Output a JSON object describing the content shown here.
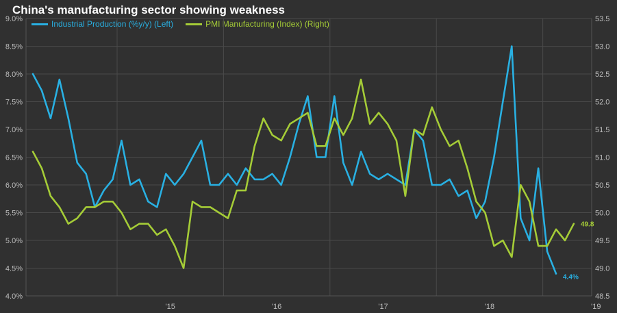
{
  "title": "China's manufacturing sector showing weakness",
  "colors": {
    "background": "#303030",
    "grid": "#4a4a4a",
    "axis_text": "#bdbdbd",
    "industrial_production": "#29b0e2",
    "pmi": "#a5cc37"
  },
  "chart_data": {
    "type": "line",
    "title": "China's manufacturing sector showing weakness",
    "grid": true,
    "legend_position": "top-left",
    "x_ticks": [
      "'15",
      "'16",
      "'17",
      "'18",
      "'19"
    ],
    "x_range": [
      "2014-03",
      "2019-05"
    ],
    "y_left": {
      "range": [
        4.0,
        9.0
      ],
      "ticks": [
        "4.0%",
        "4.5%",
        "5.0%",
        "5.5%",
        "6.0%",
        "6.5%",
        "7.0%",
        "7.5%",
        "8.0%",
        "8.5%",
        "9.0%"
      ]
    },
    "y_right": {
      "range": [
        48.5,
        53.5
      ],
      "ticks": [
        "48.5",
        "49.0",
        "49.5",
        "50.0",
        "50.5",
        "51.0",
        "51.5",
        "52.0",
        "52.5",
        "53.0",
        "53.5"
      ]
    },
    "series": [
      {
        "name": "Industrial Production (%y/y) (Left)",
        "axis": "left",
        "color": "#29b0e2",
        "end_label": "4.4%",
        "points": [
          [
            "2014-03",
            8.0
          ],
          [
            "2014-04",
            7.7
          ],
          [
            "2014-05",
            7.2
          ],
          [
            "2014-06",
            7.9
          ],
          [
            "2014-07",
            7.2
          ],
          [
            "2014-08",
            6.4
          ],
          [
            "2014-09",
            6.2
          ],
          [
            "2014-10",
            5.6
          ],
          [
            "2014-11",
            5.9
          ],
          [
            "2014-12",
            6.1
          ],
          [
            "2015-01",
            6.8
          ],
          [
            "2015-02",
            6.0
          ],
          [
            "2015-03",
            6.1
          ],
          [
            "2015-04",
            5.7
          ],
          [
            "2015-05",
            5.6
          ],
          [
            "2015-06",
            6.2
          ],
          [
            "2015-07",
            6.0
          ],
          [
            "2015-08",
            6.2
          ],
          [
            "2015-09",
            6.5
          ],
          [
            "2015-10",
            6.8
          ],
          [
            "2015-11",
            6.0
          ],
          [
            "2015-12",
            6.0
          ],
          [
            "2016-01",
            6.2
          ],
          [
            "2016-02",
            6.0
          ],
          [
            "2016-03",
            6.3
          ],
          [
            "2016-04",
            6.1
          ],
          [
            "2016-05",
            6.1
          ],
          [
            "2016-06",
            6.2
          ],
          [
            "2016-07",
            6.0
          ],
          [
            "2016-08",
            6.5
          ],
          [
            "2016-09",
            7.1
          ],
          [
            "2016-10",
            7.6
          ],
          [
            "2016-11",
            6.5
          ],
          [
            "2016-12",
            6.5
          ],
          [
            "2017-01",
            7.6
          ],
          [
            "2017-02",
            6.4
          ],
          [
            "2017-03",
            6.0
          ],
          [
            "2017-04",
            6.6
          ],
          [
            "2017-05",
            6.2
          ],
          [
            "2017-06",
            6.1
          ],
          [
            "2017-07",
            6.2
          ],
          [
            "2017-08",
            6.1
          ],
          [
            "2017-09",
            6.0
          ],
          [
            "2017-10",
            7.0
          ],
          [
            "2017-11",
            6.8
          ],
          [
            "2017-12",
            6.0
          ],
          [
            "2018-01",
            6.0
          ],
          [
            "2018-02",
            6.1
          ],
          [
            "2018-03",
            5.8
          ],
          [
            "2018-04",
            5.9
          ],
          [
            "2018-05",
            5.4
          ],
          [
            "2018-06",
            5.7
          ],
          [
            "2018-07",
            6.5
          ],
          [
            "2018-08",
            7.5
          ],
          [
            "2018-09",
            8.5
          ],
          [
            "2018-10",
            5.4
          ],
          [
            "2018-11",
            5.0
          ],
          [
            "2018-12",
            6.3
          ],
          [
            "2019-01",
            4.8
          ],
          [
            "2019-02",
            4.4
          ]
        ]
      },
      {
        "name": "PMI Manufacturing (Index) (Right)",
        "axis": "right",
        "color": "#a5cc37",
        "end_label": "49.8",
        "points": [
          [
            "2014-03",
            51.1
          ],
          [
            "2014-04",
            50.8
          ],
          [
            "2014-05",
            50.3
          ],
          [
            "2014-06",
            50.1
          ],
          [
            "2014-07",
            49.8
          ],
          [
            "2014-08",
            49.9
          ],
          [
            "2014-09",
            50.1
          ],
          [
            "2014-10",
            50.1
          ],
          [
            "2014-11",
            50.2
          ],
          [
            "2014-12",
            50.2
          ],
          [
            "2015-01",
            50.0
          ],
          [
            "2015-02",
            49.7
          ],
          [
            "2015-03",
            49.8
          ],
          [
            "2015-04",
            49.8
          ],
          [
            "2015-05",
            49.6
          ],
          [
            "2015-06",
            49.7
          ],
          [
            "2015-07",
            49.4
          ],
          [
            "2015-08",
            49.0
          ],
          [
            "2015-09",
            50.2
          ],
          [
            "2015-10",
            50.1
          ],
          [
            "2015-11",
            50.1
          ],
          [
            "2015-12",
            50.0
          ],
          [
            "2016-01",
            49.9
          ],
          [
            "2016-02",
            50.4
          ],
          [
            "2016-03",
            50.4
          ],
          [
            "2016-04",
            51.2
          ],
          [
            "2016-05",
            51.7
          ],
          [
            "2016-06",
            51.4
          ],
          [
            "2016-07",
            51.3
          ],
          [
            "2016-08",
            51.6
          ],
          [
            "2016-09",
            51.7
          ],
          [
            "2016-10",
            51.8
          ],
          [
            "2016-11",
            51.2
          ],
          [
            "2016-12",
            51.2
          ],
          [
            "2017-01",
            51.7
          ],
          [
            "2017-02",
            51.4
          ],
          [
            "2017-03",
            51.7
          ],
          [
            "2017-04",
            52.4
          ],
          [
            "2017-05",
            51.6
          ],
          [
            "2017-06",
            51.8
          ],
          [
            "2017-07",
            51.6
          ],
          [
            "2017-08",
            51.3
          ],
          [
            "2017-09",
            50.3
          ],
          [
            "2017-10",
            51.5
          ],
          [
            "2017-11",
            51.4
          ],
          [
            "2017-12",
            51.9
          ],
          [
            "2018-01",
            51.5
          ],
          [
            "2018-02",
            51.2
          ],
          [
            "2018-03",
            51.3
          ],
          [
            "2018-04",
            50.8
          ],
          [
            "2018-05",
            50.2
          ],
          [
            "2018-06",
            50.0
          ],
          [
            "2018-07",
            49.4
          ],
          [
            "2018-08",
            49.5
          ],
          [
            "2018-09",
            49.2
          ],
          [
            "2018-10",
            50.5
          ],
          [
            "2018-11",
            50.2
          ],
          [
            "2018-12",
            49.4
          ],
          [
            "2019-01",
            49.4
          ],
          [
            "2019-02",
            49.7
          ],
          [
            "2019-03",
            49.5
          ],
          [
            "2019-04",
            49.8
          ]
        ]
      }
    ]
  }
}
